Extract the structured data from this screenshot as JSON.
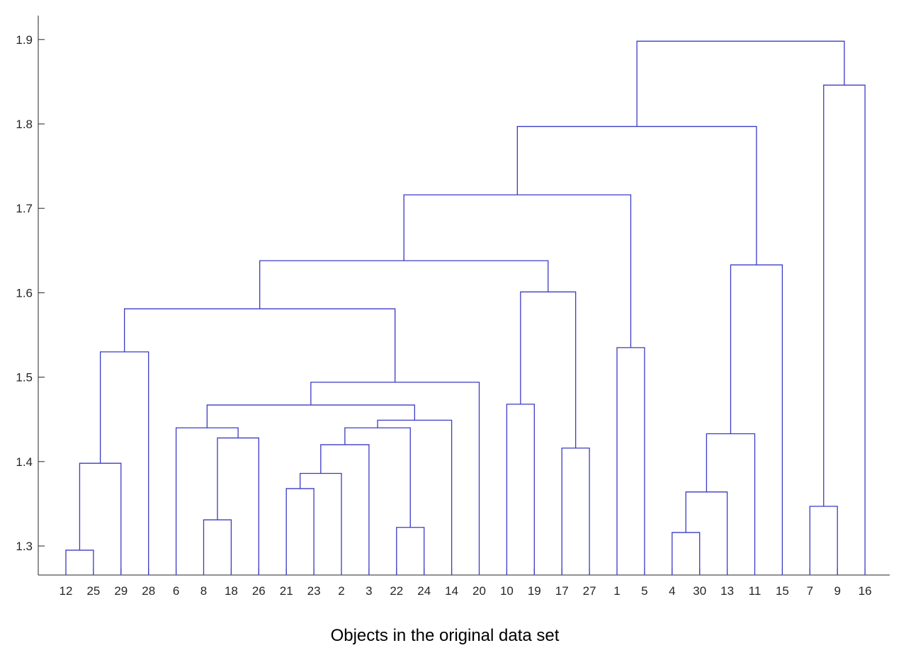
{
  "chart_data": {
    "type": "dendrogram",
    "title": "",
    "xlabel": "Objects in the original data set",
    "ylabel": "",
    "ylim": [
      1.265,
      1.93
    ],
    "yticks": [
      1.3,
      1.4,
      1.5,
      1.6,
      1.7,
      1.8,
      1.9
    ],
    "ytick_labels": [
      "1.3",
      "1.4",
      "1.5",
      "1.6",
      "1.7",
      "1.8",
      "1.9"
    ],
    "grid": false,
    "colors": {
      "links": "#3b3bc4",
      "axis": "#262626"
    },
    "leaf_order": [
      "12",
      "25",
      "29",
      "28",
      "6",
      "8",
      "18",
      "26",
      "21",
      "23",
      "2",
      "3",
      "22",
      "24",
      "14",
      "20",
      "10",
      "19",
      "17",
      "27",
      "1",
      "5",
      "4",
      "30",
      "13",
      "11",
      "15",
      "7",
      "9",
      "16"
    ],
    "merges": [
      {
        "children": [
          "12",
          "25"
        ],
        "height": 1.295
      },
      {
        "children": [
          "12|25",
          "29"
        ],
        "height": 1.398
      },
      {
        "children": [
          "12|25|29",
          "28"
        ],
        "height": 1.53
      },
      {
        "children": [
          "8",
          "18"
        ],
        "height": 1.331
      },
      {
        "children": [
          "8|18",
          "26"
        ],
        "height": 1.428
      },
      {
        "children": [
          "6",
          "8|18|26"
        ],
        "height": 1.44
      },
      {
        "children": [
          "21",
          "23"
        ],
        "height": 1.368
      },
      {
        "children": [
          "21|23",
          "2"
        ],
        "height": 1.386
      },
      {
        "children": [
          "21|23|2",
          "3"
        ],
        "height": 1.42
      },
      {
        "children": [
          "22",
          "24"
        ],
        "height": 1.322
      },
      {
        "children": [
          "21|23|2|3",
          "22|24"
        ],
        "height": 1.44
      },
      {
        "children": [
          "21..24",
          "14"
        ],
        "height": 1.449
      },
      {
        "children": [
          "6..26",
          "21..14"
        ],
        "height": 1.467
      },
      {
        "children": [
          "6..14",
          "20"
        ],
        "height": 1.494
      },
      {
        "children": [
          "12..28",
          "6..20"
        ],
        "height": 1.581
      },
      {
        "children": [
          "10",
          "19"
        ],
        "height": 1.468
      },
      {
        "children": [
          "17",
          "27"
        ],
        "height": 1.416
      },
      {
        "children": [
          "10|19",
          "17|27"
        ],
        "height": 1.601
      },
      {
        "children": [
          "12..20",
          "10..27"
        ],
        "height": 1.638
      },
      {
        "children": [
          "1",
          "5"
        ],
        "height": 1.535
      },
      {
        "children": [
          "12..27",
          "1|5"
        ],
        "height": 1.716
      },
      {
        "children": [
          "4",
          "30"
        ],
        "height": 1.316
      },
      {
        "children": [
          "4|30",
          "13"
        ],
        "height": 1.364
      },
      {
        "children": [
          "4|30|13",
          "11"
        ],
        "height": 1.433
      },
      {
        "children": [
          "4..11",
          "15"
        ],
        "height": 1.633
      },
      {
        "children": [
          "12..5",
          "4..15"
        ],
        "height": 1.797
      },
      {
        "children": [
          "7",
          "9"
        ],
        "height": 1.347
      },
      {
        "children": [
          "7|9",
          "16"
        ],
        "height": 1.846
      },
      {
        "children": [
          "12..15",
          "7..16"
        ],
        "height": 1.898
      }
    ]
  }
}
